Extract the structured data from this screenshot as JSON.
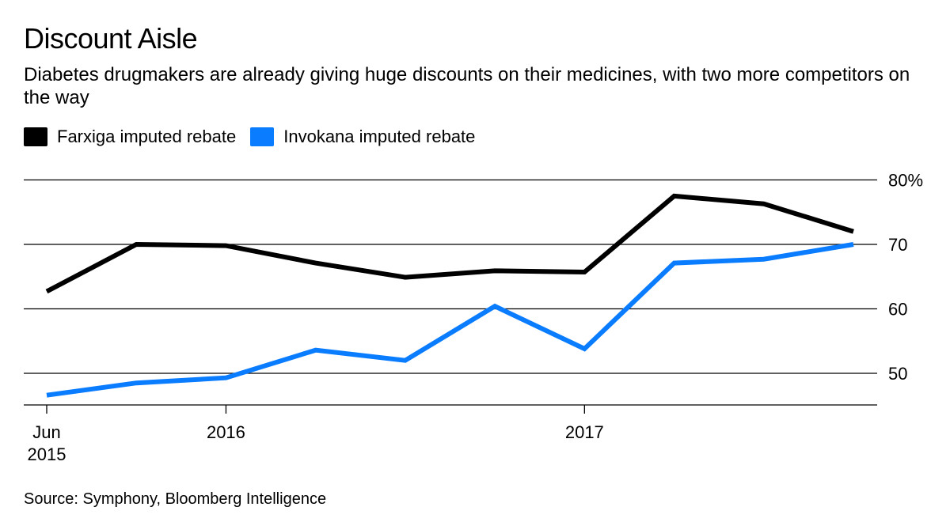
{
  "title": "Discount Aisle",
  "subtitle": "Diabetes drugmakers are already giving huge discounts on their medicines, with two more competitors on the way",
  "source": "Source: Symphony, Bloomberg Intelligence",
  "chart_data": {
    "type": "line",
    "x": [
      "2015-06",
      "2015-09",
      "2015-12",
      "2016-03",
      "2016-06",
      "2016-09",
      "2016-12",
      "2017-03",
      "2017-06",
      "2017-09"
    ],
    "x_ticks": [
      {
        "x": "2015-06",
        "label": [
          "Jun",
          "2015"
        ]
      },
      {
        "x": "2015-12",
        "label": [
          "2016"
        ]
      },
      {
        "x": "2016-12",
        "label": [
          "2017"
        ]
      }
    ],
    "y_ticks": [
      {
        "value": 50,
        "label": "50"
      },
      {
        "value": 60,
        "label": "60"
      },
      {
        "value": 70,
        "label": "70"
      },
      {
        "value": 80,
        "label": "80%"
      }
    ],
    "ylim": [
      45.5,
      80
    ],
    "grid": true,
    "legend_position": "top-left",
    "series": [
      {
        "name": "Farxiga imputed rebate",
        "color": "#000000",
        "values": [
          62.7,
          70.0,
          69.8,
          67.1,
          64.9,
          65.9,
          65.7,
          77.5,
          76.3,
          72.0
        ]
      },
      {
        "name": "Invokana imputed rebate",
        "color": "#0a7cff",
        "values": [
          46.6,
          48.5,
          49.3,
          53.6,
          52.0,
          60.4,
          53.8,
          67.1,
          67.7,
          70.0
        ]
      }
    ]
  }
}
